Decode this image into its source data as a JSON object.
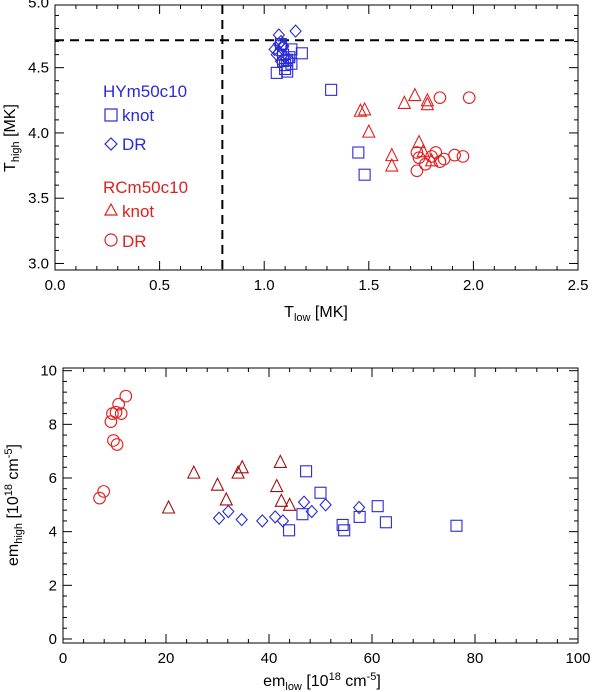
{
  "colors": {
    "blue": "#2a2ad6",
    "red": "#e02020",
    "darkred": "#a01010",
    "axis": "#000000"
  },
  "chart_data": [
    {
      "type": "scatter",
      "title": "",
      "xlabel": {
        "base": "T",
        "sub": "low",
        "unit": " [MK]"
      },
      "ylabel": {
        "base": "T",
        "sub": "high",
        "unit": " [MK]"
      },
      "xlim": [
        0.0,
        2.5
      ],
      "ylim": [
        2.95,
        4.98
      ],
      "xticks": [
        "0.0",
        "0.5",
        "1.0",
        "1.5",
        "2.0",
        "2.5"
      ],
      "xtick_values": [
        0.0,
        0.5,
        1.0,
        1.5,
        2.0,
        2.5
      ],
      "yticks": [
        "3.0",
        "3.5",
        "4.0",
        "4.5",
        "5.0"
      ],
      "ytick_values": [
        3.0,
        3.5,
        4.0,
        4.5,
        5.0
      ],
      "reference_lines": {
        "vertical_x": 0.8,
        "horizontal_y": 4.71
      },
      "legend": [
        {
          "group": "HYm50c10",
          "color": "blue",
          "entries": [
            {
              "marker": "square",
              "label": "knot"
            },
            {
              "marker": "diamond",
              "label": "DR"
            }
          ]
        },
        {
          "group": "RCm50c10",
          "color": "red",
          "entries": [
            {
              "marker": "triangle",
              "label": "knot"
            },
            {
              "marker": "circle",
              "label": "DR"
            }
          ]
        }
      ],
      "series": [
        {
          "marker": "square",
          "color": "blue",
          "x": [
            1.08,
            1.09,
            1.1,
            1.11,
            1.12,
            1.13,
            1.06,
            1.1,
            1.13,
            1.18,
            1.32,
            1.45,
            1.48,
            1.09,
            1.11
          ],
          "y": [
            4.68,
            4.55,
            4.52,
            4.47,
            4.58,
            4.64,
            4.46,
            4.49,
            4.53,
            4.61,
            4.33,
            3.85,
            3.68,
            4.6,
            4.56
          ]
        },
        {
          "marker": "diamond",
          "color": "blue",
          "x": [
            1.07,
            1.08,
            1.05,
            1.09,
            1.15,
            1.06,
            1.08,
            1.07,
            1.1,
            1.12,
            1.07,
            1.09
          ],
          "y": [
            4.75,
            4.7,
            4.64,
            4.67,
            4.78,
            4.6,
            4.55,
            4.68,
            4.58,
            4.56,
            4.62,
            4.66
          ]
        },
        {
          "marker": "triangle",
          "color": "red",
          "x": [
            1.46,
            1.48,
            1.5,
            1.61,
            1.61,
            1.67,
            1.72,
            1.74,
            1.76,
            1.78,
            1.8,
            1.78
          ],
          "y": [
            4.17,
            4.18,
            4.01,
            3.83,
            3.75,
            4.23,
            4.29,
            3.93,
            3.86,
            4.22,
            3.79,
            4.25
          ]
        },
        {
          "marker": "circle",
          "color": "red",
          "x": [
            1.73,
            1.77,
            1.8,
            1.82,
            1.84,
            1.86,
            1.91,
            1.95,
            1.84,
            1.98,
            1.74,
            1.73
          ],
          "y": [
            3.71,
            3.76,
            3.82,
            3.85,
            3.78,
            3.8,
            3.83,
            3.82,
            4.27,
            4.27,
            3.81,
            3.85
          ]
        }
      ]
    },
    {
      "type": "scatter",
      "title": "",
      "xlabel": {
        "base": "em",
        "sub": "low",
        "bracket": " [10",
        "exp": "18",
        "unit": " cm",
        "unit_exp": "-5",
        "close": "]"
      },
      "ylabel": {
        "base": "em",
        "sub": "high",
        "bracket": " [10",
        "exp": "18",
        "unit": " cm",
        "unit_exp": "-5",
        "close": "]"
      },
      "xlim": [
        0,
        100
      ],
      "ylim": [
        -0.15,
        10.1
      ],
      "xticks": [
        "0",
        "20",
        "40",
        "60",
        "80",
        "100"
      ],
      "xtick_values": [
        0,
        20,
        40,
        60,
        80,
        100
      ],
      "yticks": [
        "0",
        "2",
        "4",
        "6",
        "8",
        "10"
      ],
      "ytick_values": [
        0,
        2,
        4,
        6,
        8,
        10
      ],
      "series": [
        {
          "marker": "square",
          "color": "blue",
          "x": [
            47.2,
            50.0,
            43.9,
            46.5,
            54.3,
            54.6,
            57.6,
            61.1,
            62.7,
            76.4
          ],
          "y": [
            6.25,
            5.45,
            4.05,
            4.65,
            4.25,
            4.05,
            4.55,
            4.95,
            4.35,
            4.22
          ]
        },
        {
          "marker": "diamond",
          "color": "blue",
          "x": [
            30.3,
            32.1,
            34.7,
            38.7,
            41.2,
            42.7,
            46.8,
            48.3,
            51.0,
            57.5
          ],
          "y": [
            4.5,
            4.75,
            4.45,
            4.4,
            4.55,
            4.4,
            5.1,
            4.75,
            5.0,
            4.9
          ]
        },
        {
          "marker": "triangle",
          "color": "darkred",
          "x": [
            20.5,
            25.4,
            30.0,
            31.7,
            34.0,
            34.8,
            41.5,
            42.2,
            42.4,
            44.0
          ],
          "y": [
            4.9,
            6.2,
            5.75,
            5.2,
            6.2,
            6.4,
            5.7,
            6.6,
            5.15,
            5.0
          ]
        },
        {
          "marker": "circle",
          "color": "red",
          "x": [
            7.1,
            7.9,
            9.3,
            9.6,
            9.8,
            10.3,
            10.5,
            10.8,
            11.3,
            12.2
          ],
          "y": [
            5.25,
            5.5,
            8.1,
            8.4,
            7.4,
            8.45,
            7.25,
            8.75,
            8.4,
            9.05
          ]
        }
      ]
    }
  ]
}
